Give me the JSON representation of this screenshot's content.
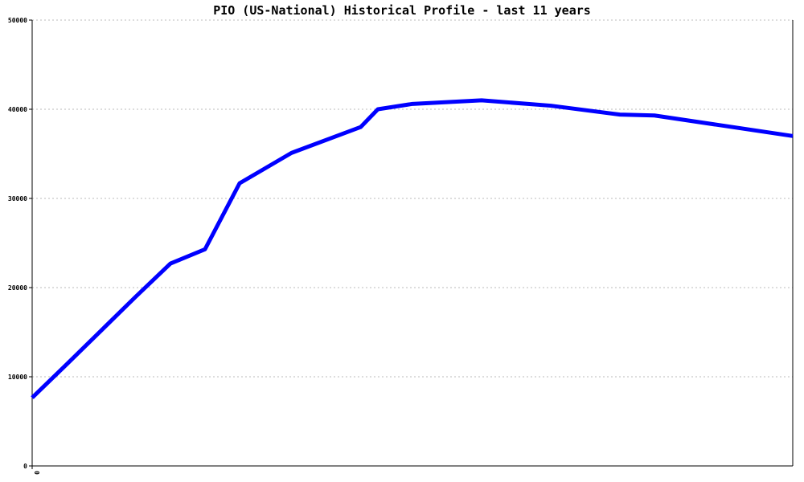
{
  "chart_data": {
    "type": "line",
    "title": "PIO (US-National) Historical Profile - last 11 years",
    "x": [
      0,
      1,
      2,
      3,
      4,
      5,
      6,
      7.5,
      9.5,
      10,
      11,
      13,
      15,
      17,
      18,
      22
    ],
    "series": [
      {
        "color": "#0000ff",
        "values": [
          7650,
          11400,
          15200,
          19000,
          22700,
          24300,
          31700,
          35100,
          38000,
          40000,
          40600,
          41000,
          40400,
          39400,
          39300,
          37000
        ]
      }
    ],
    "xlim": [
      0,
      22
    ],
    "xticks": [
      0
    ],
    "ylim": [
      0,
      50000
    ],
    "yticks": [
      0,
      10000,
      20000,
      30000,
      40000,
      50000
    ],
    "grid": true
  }
}
